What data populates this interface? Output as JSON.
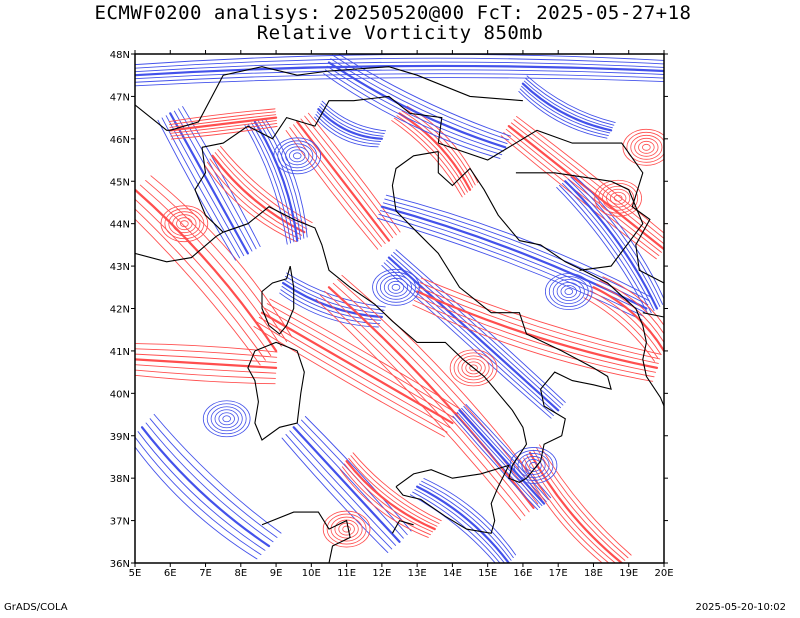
{
  "header": {
    "title_line1": "ECMWF0200 analisys: 20250520@00 FcT: 2025-05-27+18",
    "title_line2": "Relative Vorticity 850mb"
  },
  "map": {
    "lon_range": [
      5,
      20
    ],
    "lat_range": [
      36,
      48
    ],
    "lon_labels": [
      "5E",
      "6E",
      "7E",
      "8E",
      "9E",
      "10E",
      "11E",
      "12E",
      "13E",
      "14E",
      "15E",
      "16E",
      "17E",
      "18E",
      "19E",
      "20E"
    ],
    "lat_labels": [
      "36N",
      "37N",
      "38N",
      "39N",
      "40N",
      "41N",
      "42N",
      "43N",
      "44N",
      "45N",
      "46N",
      "47N",
      "48N"
    ],
    "colors": {
      "positive": "#ff3b3b",
      "negative": "#2f3fe8",
      "coast": "#000000",
      "frame": "#000000"
    }
  },
  "footer": {
    "left": "GrADS/COLA",
    "right": "2025-05-20-10:02"
  }
}
